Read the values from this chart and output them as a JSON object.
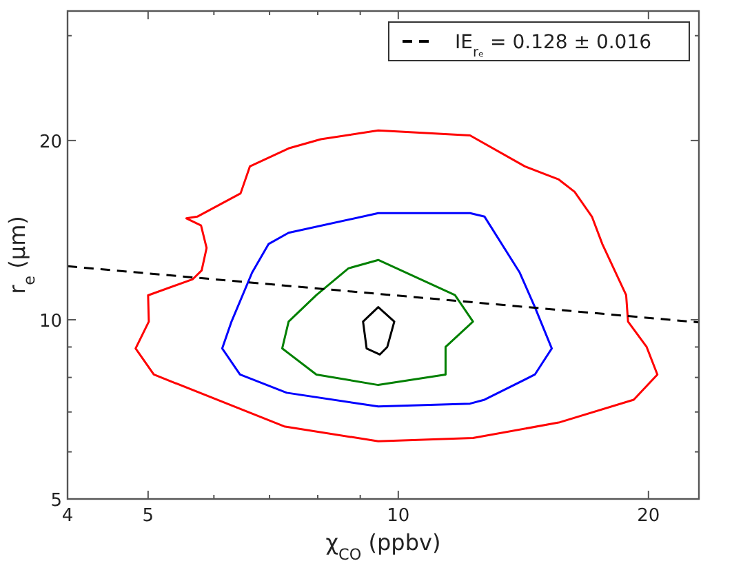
{
  "chart_data": {
    "type": "line",
    "xlabel": "χ$_{CO}$ (ppbv)",
    "ylabel": "r$_{e}$ (μm)",
    "log": "xy",
    "xlim": [
      4,
      23
    ],
    "ylim": [
      5,
      33
    ],
    "xticks": [
      4,
      5,
      {
        "value": 6,
        "label": null
      },
      {
        "value": 7,
        "label": null
      },
      {
        "value": 8,
        "label": null
      },
      {
        "value": 9,
        "label": null
      },
      10,
      20
    ],
    "yticks": [
      5,
      {
        "value": 6,
        "label": null
      },
      {
        "value": 7,
        "label": null
      },
      {
        "value": 8,
        "label": null
      },
      {
        "value": 9,
        "label": null
      },
      10,
      20,
      {
        "value": 30,
        "label": null
      }
    ],
    "legend": "top right",
    "marker": "none",
    "series": [
      {
        "name": "IE$_{rₑ}$ = 0.128 ± 0.016",
        "color": "#000000",
        "line_style": "dashed",
        "x": [
          4,
          23
        ],
        "values": [
          12.3,
          9.9
        ]
      }
    ]
  }
}
